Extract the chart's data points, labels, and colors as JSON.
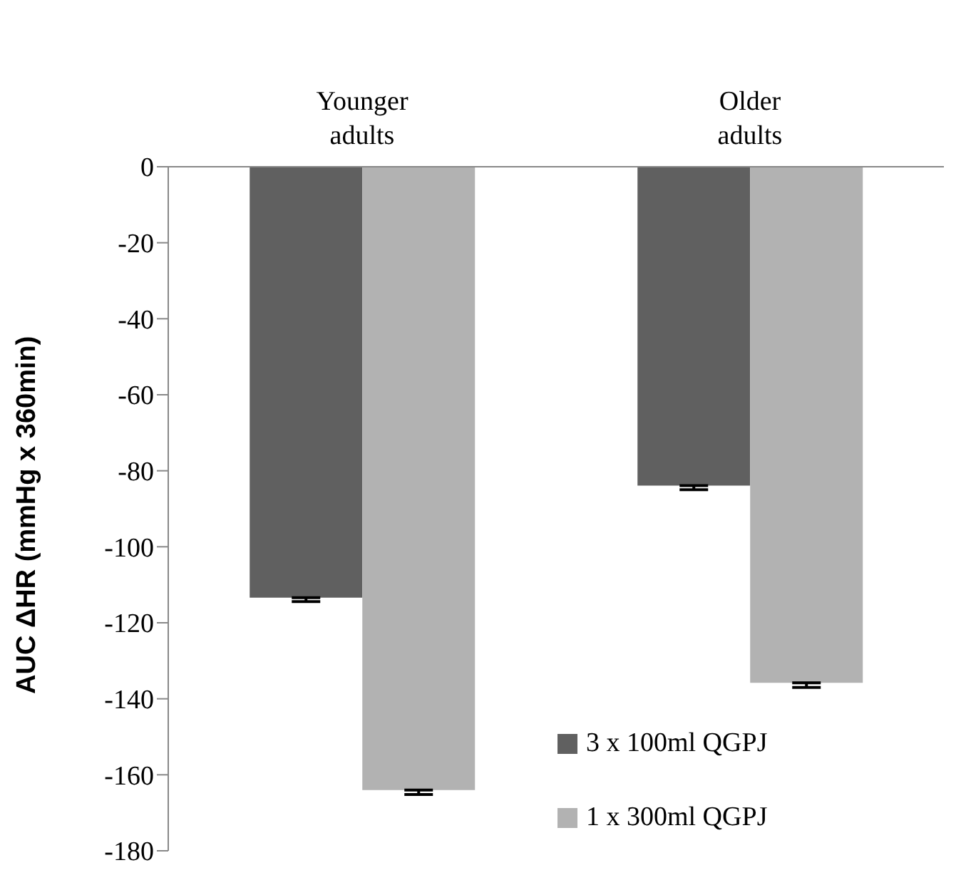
{
  "chart_data": {
    "type": "bar",
    "ylabel": "AUC ΔHR (mmHg x 360min)",
    "categories": [
      "Younger adults",
      "Older adults"
    ],
    "series": [
      {
        "name": "3 x 100ml QGPJ",
        "color": "#606060",
        "values": [
          -113.4,
          -83.9
        ],
        "errors": [
          [
            -114.4,
            -113.4
          ],
          [
            -85,
            -83.9
          ]
        ]
      },
      {
        "name": "1 x 300ml QGPJ",
        "color": "#b2b2b2",
        "values": [
          -164,
          -135.8
        ],
        "errors": [
          [
            -165.2,
            -164
          ],
          [
            -137,
            -135.8
          ]
        ]
      }
    ],
    "ylim": [
      -180,
      0
    ],
    "yticks": [
      0,
      -20,
      -40,
      -60,
      -80,
      -100,
      -120,
      -140,
      -160,
      -180
    ],
    "grid": false,
    "legend": "bottom right"
  }
}
